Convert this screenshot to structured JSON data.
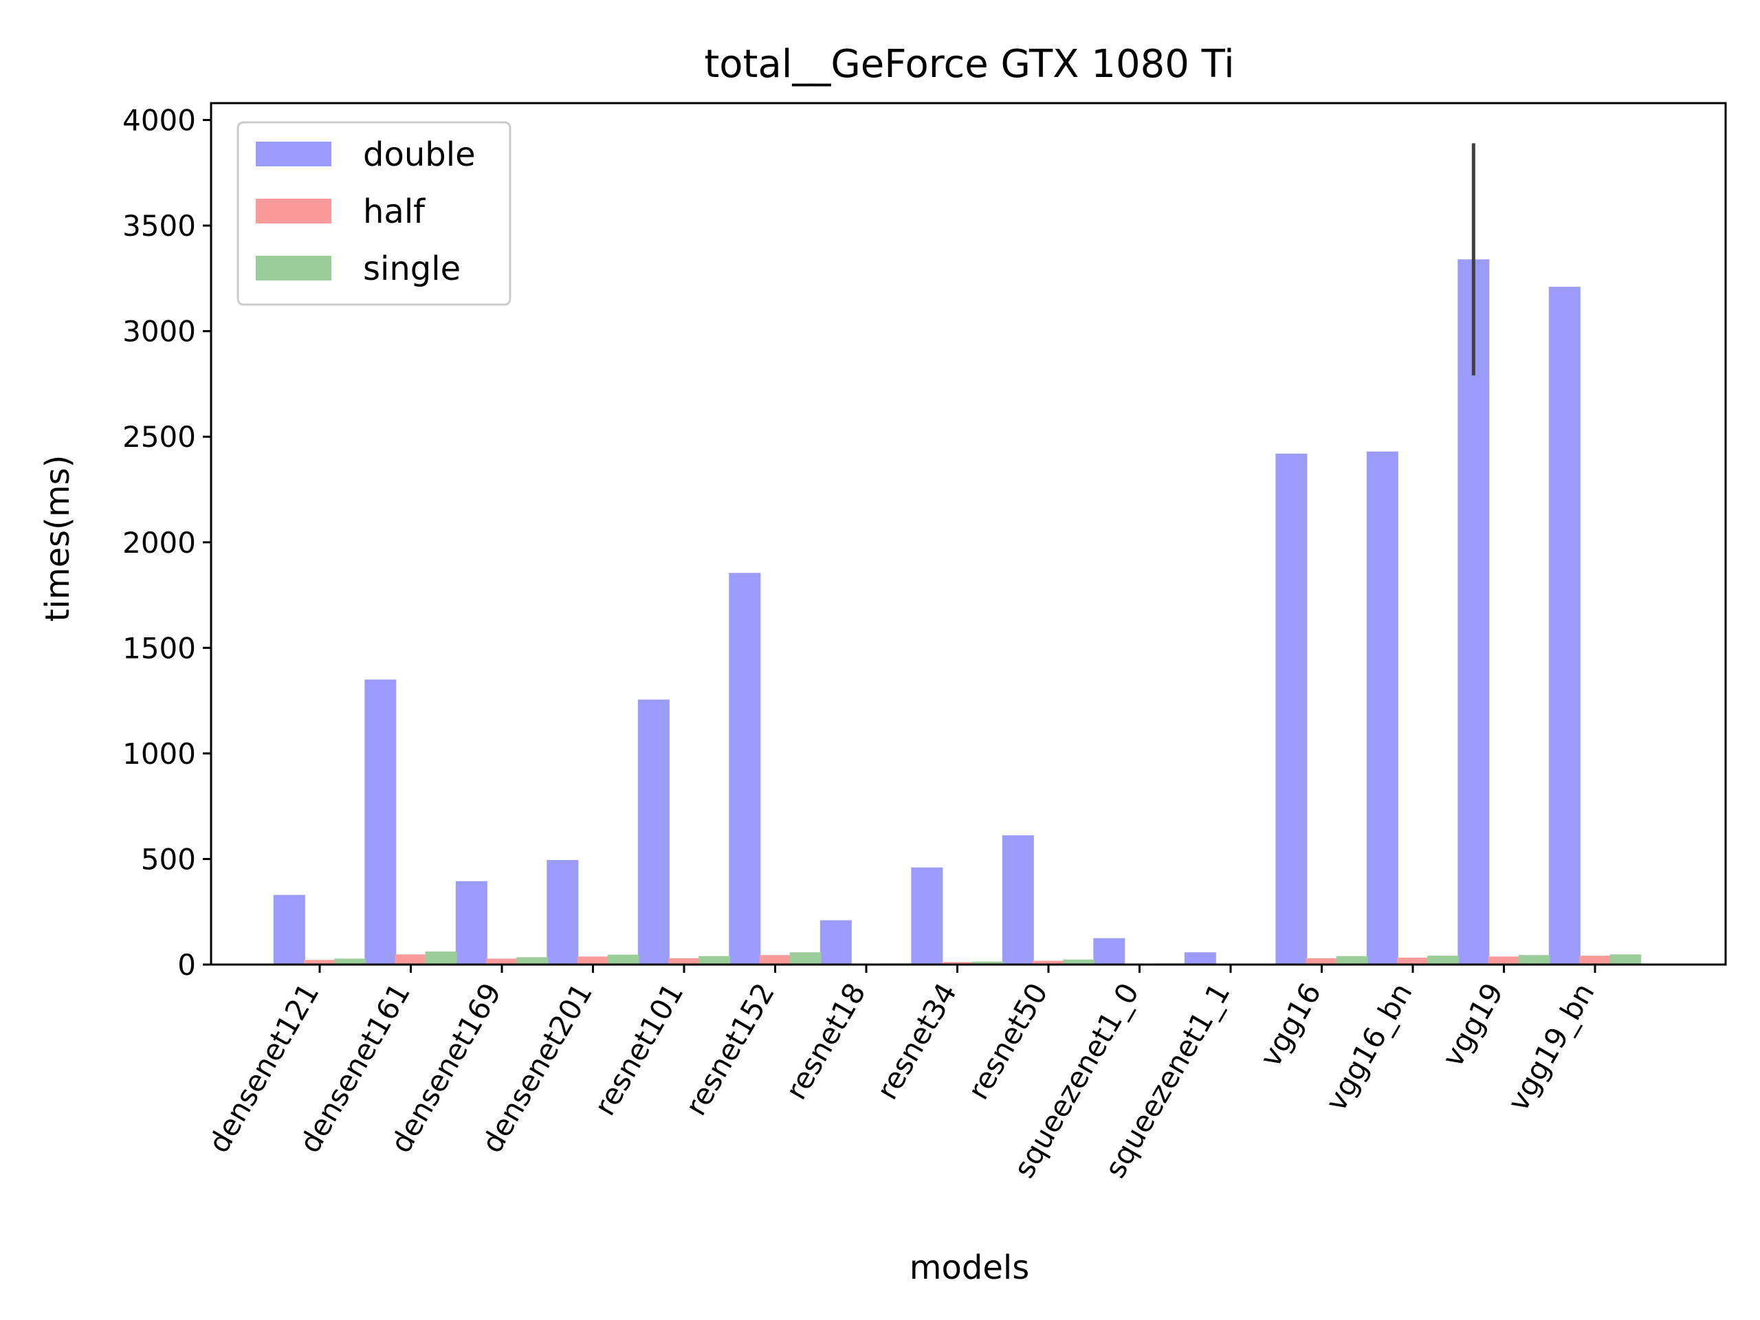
{
  "chart_data": {
    "type": "bar",
    "title": "total__GeForce GTX 1080 Ti",
    "xlabel": "models",
    "ylabel": "times(ms)",
    "ylim": [
      0,
      4080
    ],
    "yticks": [
      0,
      500,
      1000,
      1500,
      2000,
      2500,
      3000,
      3500,
      4000
    ],
    "grid": false,
    "legend": "upper-left",
    "categories": [
      "densenet121",
      "densenet161",
      "densenet169",
      "densenet201",
      "resnet101",
      "resnet152",
      "resnet18",
      "resnet34",
      "resnet50",
      "squeezenet1_0",
      "squeezenet1_1",
      "vgg16",
      "vgg16_bn",
      "vgg19",
      "vgg19_bn"
    ],
    "series": [
      {
        "name": "double",
        "color": "#9b9bfa",
        "values": [
          330,
          1350,
          395,
          495,
          1255,
          1855,
          210,
          460,
          612,
          125,
          58,
          2420,
          2430,
          3340,
          3210
        ],
        "error": [
          0,
          0,
          0,
          0,
          0,
          0,
          0,
          0,
          0,
          0,
          0,
          0,
          0,
          550,
          0
        ]
      },
      {
        "name": "half",
        "color": "#fa9b9b",
        "values": [
          22,
          48,
          28,
          38,
          30,
          45,
          5,
          12,
          18,
          5,
          3,
          30,
          33,
          38,
          42
        ],
        "error": [
          0,
          0,
          0,
          0,
          0,
          0,
          0,
          0,
          0,
          0,
          0,
          0,
          0,
          0,
          0
        ]
      },
      {
        "name": "single",
        "color": "#9bcd9b",
        "values": [
          28,
          62,
          35,
          47,
          40,
          58,
          6,
          14,
          24,
          6,
          4,
          40,
          42,
          45,
          48
        ],
        "error": [
          0,
          0,
          0,
          0,
          0,
          0,
          0,
          0,
          0,
          0,
          0,
          0,
          0,
          0,
          0
        ]
      }
    ]
  }
}
